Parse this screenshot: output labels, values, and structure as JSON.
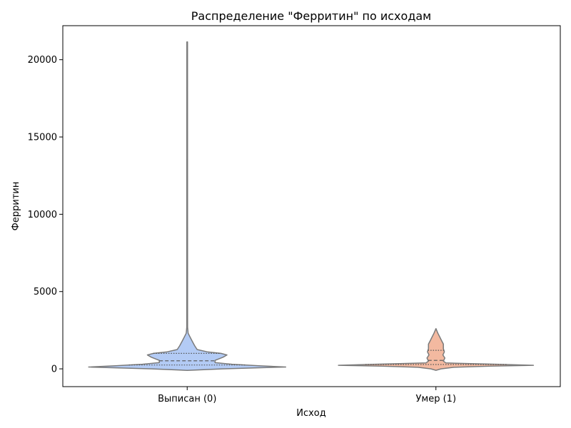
{
  "chart_data": {
    "type": "violin",
    "title": "Распределение \"Ферритин\" по исходам",
    "xlabel": "Исход",
    "ylabel": "Ферритин",
    "categories": [
      "Выписан (0)",
      "Умер (1)"
    ],
    "ylim": [
      -1150,
      22200
    ],
    "yticks": [
      0,
      5000,
      10000,
      15000,
      20000
    ],
    "grid": false,
    "colors": {
      "violin_0": "#b3cbf5",
      "violin_1": "#f3b9a0",
      "outline": "#7a7a7a"
    },
    "violins": [
      {
        "category": "Выписан (0)",
        "min": -100,
        "max": 21150,
        "quartiles": [
          250,
          520,
          1000
        ],
        "profile": [
          [
            -100,
            0.0
          ],
          [
            0,
            0.35
          ],
          [
            120,
            0.99
          ],
          [
            200,
            0.72
          ],
          [
            300,
            0.45
          ],
          [
            400,
            0.28
          ],
          [
            550,
            0.28
          ],
          [
            750,
            0.36
          ],
          [
            900,
            0.4
          ],
          [
            1000,
            0.34
          ],
          [
            1100,
            0.2
          ],
          [
            1250,
            0.1
          ],
          [
            1500,
            0.075
          ],
          [
            1800,
            0.05
          ],
          [
            2050,
            0.03
          ],
          [
            2300,
            0.01
          ],
          [
            2700,
            0.004
          ],
          [
            21150,
            0.003
          ]
        ]
      },
      {
        "category": "Умер (1)",
        "min": -100,
        "max": 2600,
        "quartiles": [
          280,
          550,
          1200
        ],
        "profile": [
          [
            -100,
            0.0
          ],
          [
            0,
            0.05
          ],
          [
            100,
            0.18
          ],
          [
            180,
            0.55
          ],
          [
            230,
            0.98
          ],
          [
            300,
            0.6
          ],
          [
            380,
            0.1
          ],
          [
            500,
            0.075
          ],
          [
            700,
            0.09
          ],
          [
            900,
            0.07
          ],
          [
            1100,
            0.085
          ],
          [
            1300,
            0.075
          ],
          [
            1600,
            0.075
          ],
          [
            1850,
            0.055
          ],
          [
            2050,
            0.04
          ],
          [
            2300,
            0.02
          ],
          [
            2600,
            0.0
          ]
        ]
      }
    ]
  }
}
